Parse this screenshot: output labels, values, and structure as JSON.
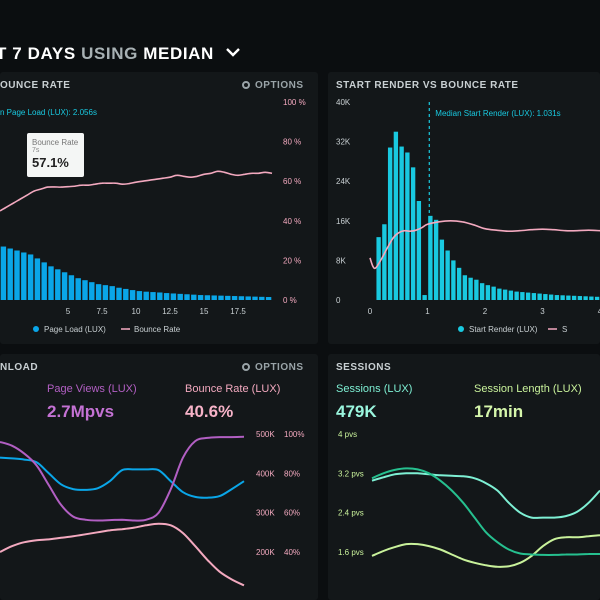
{
  "header": {
    "title_prefix": "T 7 DAYS",
    "title_using": "USING",
    "title_metric": "MEDIAN"
  },
  "colors": {
    "cyan": "#19c9e0",
    "blue": "#0aa6e8",
    "pink": "#f3a9bf",
    "purple": "#b25fc3",
    "mint": "#7ef0d4",
    "lime": "#c9f29b",
    "background": "#0b0e10",
    "panel": "#131719"
  },
  "panels": {
    "bounce": {
      "title": "OUNCE RATE",
      "options": "OPTIONS",
      "median_label": "n Page Load (LUX): 2.056s",
      "tooltip": {
        "label": "Bounce Rate",
        "sub": "7s",
        "value": "57.1%"
      },
      "legend": [
        {
          "name": "Page Load (LUX)",
          "marker": "dot"
        },
        {
          "name": "Bounce Rate",
          "marker": "line"
        }
      ]
    },
    "start_render": {
      "title": "START RENDER VS BOUNCE RATE",
      "median_label": "Median Start Render (LUX): 1.031s",
      "legend": [
        {
          "name": "Start Render (LUX)",
          "marker": "dot"
        },
        {
          "name": "S",
          "marker": "line"
        }
      ]
    },
    "load": {
      "title": "NLOAD",
      "options": "OPTIONS",
      "metrics": [
        {
          "label": "Page Views (LUX)",
          "value": "2.7Mpvs"
        },
        {
          "label": "Bounce Rate (LUX)",
          "value": "40.6%"
        }
      ]
    },
    "sessions": {
      "title": "SESSIONS",
      "metrics": [
        {
          "label": "Sessions (LUX)",
          "value": "479K"
        },
        {
          "label": "Session Length (LUX)",
          "value": "17min"
        }
      ]
    }
  },
  "chart_data": [
    {
      "type": "bar",
      "id": "page-load-vs-bounce",
      "x_ticks": [
        "5",
        "7.5",
        "10",
        "12.5",
        "15",
        "17.5"
      ],
      "y_right_ticks": [
        "100 %",
        "80 %",
        "60 %",
        "40 %",
        "20 %",
        "0 %"
      ],
      "xlim": [
        0,
        20
      ],
      "ylim_right": [
        0,
        100
      ],
      "series": [
        {
          "name": "Page Load (LUX)",
          "type": "bar",
          "x": [
            0.25,
            0.75,
            1.25,
            1.75,
            2.25,
            2.75,
            3.25,
            3.75,
            4.25,
            4.75,
            5.25,
            5.75,
            6.25,
            6.75,
            7.25,
            7.75,
            8.25,
            8.75,
            9.25,
            9.75,
            10.25,
            10.75,
            11.25,
            11.75,
            12.25,
            12.75,
            13.25,
            13.75,
            14.25,
            14.75,
            15.25,
            15.75,
            16.25,
            16.75,
            17.25,
            17.75,
            18.25,
            18.75,
            19.25,
            19.75
          ],
          "values": [
            27,
            26,
            25,
            24,
            23,
            21,
            19,
            17,
            15.5,
            14,
            12.5,
            11,
            10,
            9,
            8,
            7.5,
            7,
            6.2,
            5.6,
            5,
            4.5,
            4.2,
            4,
            3.8,
            3.5,
            3.3,
            3.1,
            2.9,
            2.7,
            2.5,
            2.4,
            2.3,
            2.2,
            2.1,
            2,
            1.9,
            1.8,
            1.7,
            1.6,
            1.5
          ]
        },
        {
          "name": "Bounce Rate",
          "type": "line",
          "x": [
            0,
            0.5,
            1,
            1.5,
            2,
            2.5,
            3,
            3.5,
            4,
            4.5,
            5,
            5.5,
            6,
            6.5,
            7,
            7.5,
            8,
            8.5,
            9,
            9.5,
            10,
            10.5,
            11,
            11.5,
            12,
            12.5,
            13,
            13.5,
            14,
            14.5,
            15,
            15.5,
            16,
            16.5,
            17,
            17.5,
            18,
            18.5,
            19,
            19.5,
            20
          ],
          "values": [
            45,
            47,
            49,
            51,
            53,
            55,
            56,
            57,
            57.1,
            57,
            57.2,
            57.5,
            58,
            58,
            58.5,
            59,
            59,
            59,
            58.5,
            58.8,
            59.5,
            60,
            60.5,
            61,
            61.5,
            62,
            63,
            62.5,
            62,
            62.5,
            63.5,
            64,
            65,
            64.5,
            63.5,
            63,
            63.5,
            64,
            64,
            64.5,
            64
          ]
        }
      ]
    },
    {
      "type": "bar",
      "id": "start-render-vs-bounce",
      "x_ticks": [
        "0",
        "1",
        "2",
        "3",
        "4"
      ],
      "y_left_ticks": [
        "40K",
        "32K",
        "24K",
        "16K",
        "8K",
        "0"
      ],
      "xlim": [
        0,
        4
      ],
      "ylim_left": [
        0,
        40000
      ],
      "series": [
        {
          "name": "Start Render (LUX)",
          "type": "bar",
          "x": [
            0.05,
            0.15,
            0.25,
            0.35,
            0.45,
            0.55,
            0.65,
            0.75,
            0.85,
            0.95,
            1.05,
            1.15,
            1.25,
            1.35,
            1.45,
            1.55,
            1.65,
            1.75,
            1.85,
            1.95,
            2.05,
            2.15,
            2.25,
            2.35,
            2.45,
            2.55,
            2.65,
            2.75,
            2.85,
            2.95,
            3.05,
            3.15,
            3.25,
            3.35,
            3.45,
            3.55,
            3.65,
            3.75,
            3.85,
            3.95
          ],
          "values": [
            0,
            12700,
            15300,
            30800,
            34000,
            31000,
            29800,
            26800,
            20000,
            1000,
            17000,
            16200,
            12200,
            10000,
            8000,
            6500,
            5000,
            4500,
            4100,
            3400,
            3000,
            2700,
            2300,
            2100,
            1900,
            1700,
            1600,
            1500,
            1400,
            1300,
            1200,
            1100,
            1000,
            950,
            900,
            850,
            800,
            750,
            700,
            650
          ]
        },
        {
          "name": "Bounce Rate",
          "type": "line",
          "x": [
            0,
            0.05,
            0.1,
            0.2,
            0.3,
            0.4,
            0.5,
            0.6,
            0.7,
            0.8,
            0.9,
            1,
            1.2,
            1.4,
            1.6,
            1.8,
            2,
            2.2,
            2.4,
            2.6,
            2.8,
            3,
            3.2,
            3.4,
            3.6,
            3.8,
            4
          ],
          "values": [
            8500,
            6800,
            6500,
            8300,
            10500,
            12500,
            13600,
            14000,
            13900,
            14100,
            14600,
            15300,
            15800,
            16000,
            15800,
            15200,
            14400,
            14100,
            13900,
            14000,
            14200,
            14300,
            14200,
            14000,
            14000,
            14100,
            14000
          ]
        }
      ]
    },
    {
      "type": "line",
      "id": "page-views-bounce-trend",
      "y_right_ticks_left": [
        "500K",
        "400K",
        "300K",
        "200K"
      ],
      "y_right_ticks_right": [
        "100%",
        "80%",
        "60%",
        "40%"
      ],
      "series": [
        {
          "name": "Page Views (LUX)",
          "type": "line",
          "x": [
            0,
            5,
            10,
            15,
            20,
            25,
            30,
            35,
            40,
            45,
            50,
            55,
            60,
            65,
            70,
            75,
            80,
            85,
            90,
            95,
            100
          ],
          "values": [
            440,
            438,
            435,
            428,
            400,
            372,
            360,
            358,
            362,
            380,
            408,
            410,
            410,
            408,
            380,
            352,
            340,
            338,
            342,
            360,
            380
          ]
        },
        {
          "name": "Bounce Rate (LUX)",
          "type": "line",
          "x": [
            0,
            5,
            10,
            15,
            20,
            25,
            30,
            35,
            40,
            45,
            50,
            55,
            60,
            65,
            70,
            75,
            80,
            85,
            90,
            95,
            100
          ],
          "values": [
            480,
            470,
            450,
            420,
            370,
            320,
            290,
            282,
            280,
            281,
            282,
            280,
            282,
            300,
            360,
            440,
            482,
            490,
            492,
            492,
            493
          ]
        },
        {
          "name": "",
          "type": "line",
          "x": [
            0,
            5,
            10,
            15,
            20,
            25,
            30,
            35,
            40,
            45,
            50,
            55,
            60,
            65,
            70,
            75,
            80,
            85,
            90,
            95,
            100
          ],
          "values": [
            200,
            215,
            225,
            230,
            232,
            236,
            240,
            245,
            250,
            255,
            258,
            262,
            268,
            272,
            268,
            248,
            215,
            180,
            150,
            130,
            115
          ]
        }
      ]
    },
    {
      "type": "line",
      "id": "sessions-trend",
      "y_left_ticks": [
        "4 pvs",
        "3.2 pvs",
        "2.4 pvs",
        "1.6 pvs"
      ],
      "series": [
        {
          "name": "Sessions (LUX)",
          "type": "line",
          "x": [
            0,
            5,
            10,
            15,
            20,
            25,
            30,
            35,
            40,
            45,
            50,
            55,
            60,
            65,
            70,
            75,
            80,
            85,
            90,
            95,
            100
          ],
          "values": [
            3.05,
            3.12,
            3.18,
            3.2,
            3.2,
            3.18,
            3.16,
            3.15,
            3.14,
            3.1,
            3.0,
            2.85,
            2.6,
            2.4,
            2.3,
            2.3,
            2.3,
            2.33,
            2.42,
            2.6,
            2.85
          ]
        },
        {
          "name": "Session Length (LUX)",
          "type": "line",
          "x": [
            0,
            5,
            10,
            15,
            20,
            25,
            30,
            35,
            40,
            45,
            50,
            55,
            60,
            65,
            70,
            75,
            80,
            85,
            90,
            95,
            100
          ],
          "values": [
            1.52,
            1.62,
            1.7,
            1.76,
            1.76,
            1.72,
            1.65,
            1.55,
            1.45,
            1.38,
            1.33,
            1.3,
            1.31,
            1.38,
            1.52,
            1.72,
            1.86,
            1.9,
            1.9,
            1.92,
            1.94
          ]
        },
        {
          "name": "",
          "type": "line",
          "x": [
            0,
            5,
            10,
            15,
            20,
            25,
            30,
            35,
            40,
            45,
            50,
            55,
            60,
            65,
            70,
            75,
            80,
            85,
            90,
            95,
            100
          ],
          "values": [
            3.1,
            3.2,
            3.27,
            3.3,
            3.28,
            3.2,
            3.05,
            2.85,
            2.6,
            2.3,
            2.0,
            1.8,
            1.65,
            1.57,
            1.55,
            1.54,
            1.54,
            1.55,
            1.55,
            1.56,
            1.56
          ]
        }
      ]
    }
  ]
}
